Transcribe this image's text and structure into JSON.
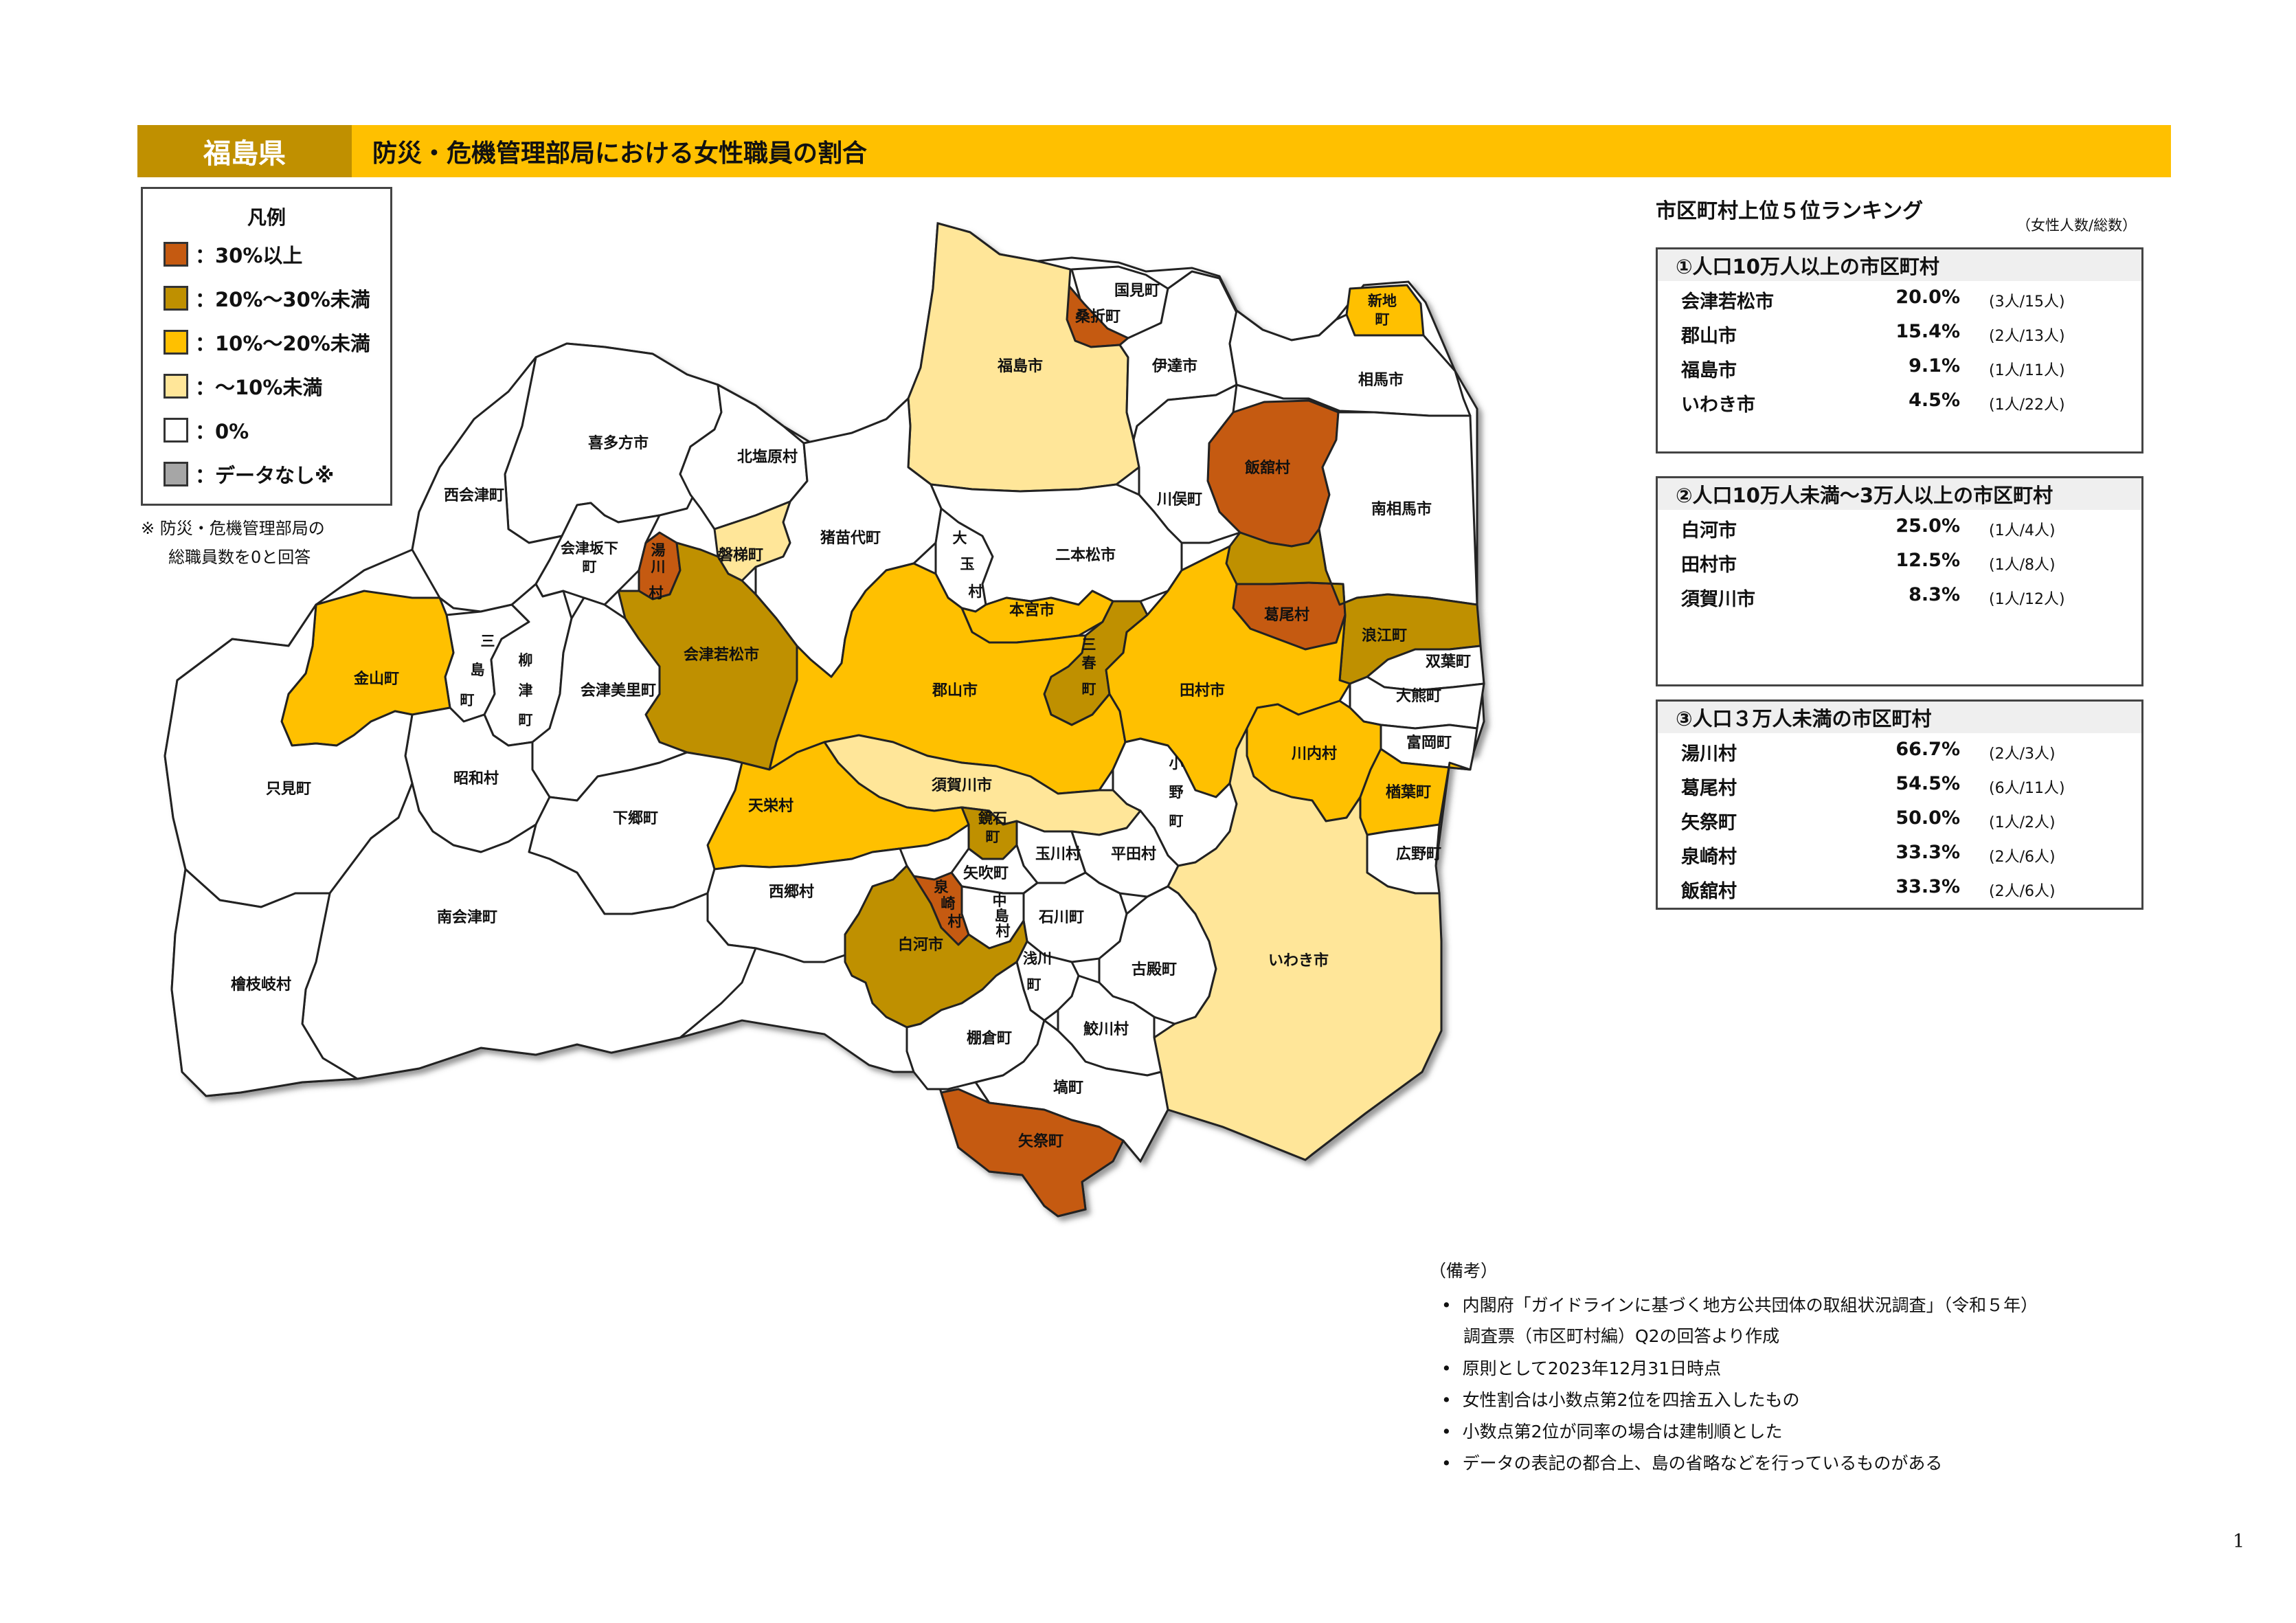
{
  "header": {
    "prefecture": "福島県",
    "title": "防災・危機管理部局における女性職員の割合"
  },
  "legend": {
    "title": "凡例",
    "items": [
      {
        "label": "：30%以上",
        "color": "#C55A11"
      },
      {
        "label": "：20%～30%未満",
        "color": "#BF9000"
      },
      {
        "label": "：10%～20%未満",
        "color": "#FFC000"
      },
      {
        "label": "：～10%未満",
        "color": "#FFE699"
      },
      {
        "label": "：0%",
        "color": "#FFFFFF"
      },
      {
        "label": "：データなし※",
        "color": "#A6A6A6"
      }
    ],
    "note_line1": "※ 防災・危機管理部局の",
    "note_line2": "総職員数を0と回答"
  },
  "map": {
    "municipalities": [
      {
        "name": "国見町",
        "fill": "#FFFFFF"
      },
      {
        "name": "桑折町",
        "fill": "#C55A11"
      },
      {
        "name": "新地町",
        "fill": "#FFC000"
      },
      {
        "name": "福島市",
        "fill": "#FFE699"
      },
      {
        "name": "伊達市",
        "fill": "#FFFFFF"
      },
      {
        "name": "相馬市",
        "fill": "#FFFFFF"
      },
      {
        "name": "喜多方市",
        "fill": "#FFFFFF"
      },
      {
        "name": "北塩原村",
        "fill": "#FFFFFF"
      },
      {
        "name": "飯舘村",
        "fill": "#C55A11"
      },
      {
        "name": "西会津町",
        "fill": "#FFFFFF"
      },
      {
        "name": "川俣町",
        "fill": "#FFFFFF"
      },
      {
        "name": "南相馬市",
        "fill": "#FFFFFF"
      },
      {
        "name": "猪苗代町",
        "fill": "#FFFFFF"
      },
      {
        "name": "会津坂下町",
        "fill": "#FFFFFF"
      },
      {
        "name": "湯川村",
        "fill": "#C55A11"
      },
      {
        "name": "磐梯町",
        "fill": "#FFE699"
      },
      {
        "name": "大玉村",
        "fill": "#FFFFFF"
      },
      {
        "name": "二本松市",
        "fill": "#FFFFFF"
      },
      {
        "name": "本宮市",
        "fill": "#FFC000"
      },
      {
        "name": "葛尾村",
        "fill": "#C55A11"
      },
      {
        "name": "浪江町",
        "fill": "#BF9000"
      },
      {
        "name": "三島町",
        "fill": "#FFFFFF"
      },
      {
        "name": "柳津町",
        "fill": "#FFFFFF"
      },
      {
        "name": "会津若松市",
        "fill": "#BF9000"
      },
      {
        "name": "三春町",
        "fill": "#BF9000"
      },
      {
        "name": "双葉町",
        "fill": "#FFFFFF"
      },
      {
        "name": "金山町",
        "fill": "#FFC000"
      },
      {
        "name": "会津美里町",
        "fill": "#FFFFFF"
      },
      {
        "name": "郡山市",
        "fill": "#FFC000"
      },
      {
        "name": "田村市",
        "fill": "#FFC000"
      },
      {
        "name": "大熊町",
        "fill": "#FFFFFF"
      },
      {
        "name": "昭和村",
        "fill": "#FFFFFF"
      },
      {
        "name": "川内村",
        "fill": "#FFC000"
      },
      {
        "name": "富岡町",
        "fill": "#FFFFFF"
      },
      {
        "name": "只見町",
        "fill": "#FFFFFF"
      },
      {
        "name": "小野町",
        "fill": "#FFFFFF"
      },
      {
        "name": "須賀川市",
        "fill": "#FFE699"
      },
      {
        "name": "楢葉町",
        "fill": "#FFC000"
      },
      {
        "name": "天栄村",
        "fill": "#FFC000"
      },
      {
        "name": "鏡石町",
        "fill": "#BF9000"
      },
      {
        "name": "下郷町",
        "fill": "#FFFFFF"
      },
      {
        "name": "玉川村",
        "fill": "#FFFFFF"
      },
      {
        "name": "平田村",
        "fill": "#FFFFFF"
      },
      {
        "name": "広野町",
        "fill": "#FFFFFF"
      },
      {
        "name": "矢吹町",
        "fill": "#FFFFFF"
      },
      {
        "name": "西郷村",
        "fill": "#FFFFFF"
      },
      {
        "name": "泉崎村",
        "fill": "#C55A11"
      },
      {
        "name": "中島村",
        "fill": "#FFFFFF"
      },
      {
        "name": "南会津町",
        "fill": "#FFFFFF"
      },
      {
        "name": "石川町",
        "fill": "#FFFFFF"
      },
      {
        "name": "白河市",
        "fill": "#BF9000"
      },
      {
        "name": "浅川町",
        "fill": "#FFFFFF"
      },
      {
        "name": "古殿町",
        "fill": "#FFFFFF"
      },
      {
        "name": "いわき市",
        "fill": "#FFE699"
      },
      {
        "name": "檜枝岐村",
        "fill": "#FFFFFF"
      },
      {
        "name": "鮫川村",
        "fill": "#FFFFFF"
      },
      {
        "name": "棚倉町",
        "fill": "#FFFFFF"
      },
      {
        "name": "塙町",
        "fill": "#FFFFFF"
      },
      {
        "name": "矢祭町",
        "fill": "#C55A11"
      }
    ]
  },
  "ranking": {
    "title": "市区町村上位５位ランキング",
    "unit_note": "（女性人数/総数）",
    "groups": [
      {
        "heading": "①人口10万人以上の市区町村",
        "rows": [
          {
            "name": "会津若松市",
            "pct": "20.0%",
            "count": "(3人/15人)"
          },
          {
            "name": "郡山市",
            "pct": "15.4%",
            "count": "(2人/13人)"
          },
          {
            "name": "福島市",
            "pct": "9.1%",
            "count": "(1人/11人)"
          },
          {
            "name": "いわき市",
            "pct": "4.5%",
            "count": "(1人/22人)"
          }
        ]
      },
      {
        "heading": "②人口10万人未満～3万人以上の市区町村",
        "rows": [
          {
            "name": "白河市",
            "pct": "25.0%",
            "count": "(1人/4人)"
          },
          {
            "name": "田村市",
            "pct": "12.5%",
            "count": "(1人/8人)"
          },
          {
            "name": "須賀川市",
            "pct": "8.3%",
            "count": "(1人/12人)"
          }
        ]
      },
      {
        "heading": "③人口３万人未満の市区町村",
        "rows": [
          {
            "name": "湯川村",
            "pct": "66.7%",
            "count": "(2人/3人)"
          },
          {
            "name": "葛尾村",
            "pct": "54.5%",
            "count": "(6人/11人)"
          },
          {
            "name": "矢祭町",
            "pct": "50.0%",
            "count": "(1人/2人)"
          },
          {
            "name": "泉崎村",
            "pct": "33.3%",
            "count": "(2人/6人)"
          },
          {
            "name": "飯舘村",
            "pct": "33.3%",
            "count": "(2人/6人)"
          }
        ]
      }
    ]
  },
  "notes": {
    "title": "（備考）",
    "items": [
      "内閣府「ガイドラインに基づく地方公共団体の取組状況調査」（令和５年）",
      "調査票（市区町村編）Q2の回答より作成",
      "原則として2023年12月31日時点",
      "女性割合は小数点第2位を四捨五入したもの",
      "小数点第2位が同率の場合は建制順とした",
      "データの表記の都合上、島の省略などを行っているものがある"
    ]
  },
  "page_number": "1"
}
